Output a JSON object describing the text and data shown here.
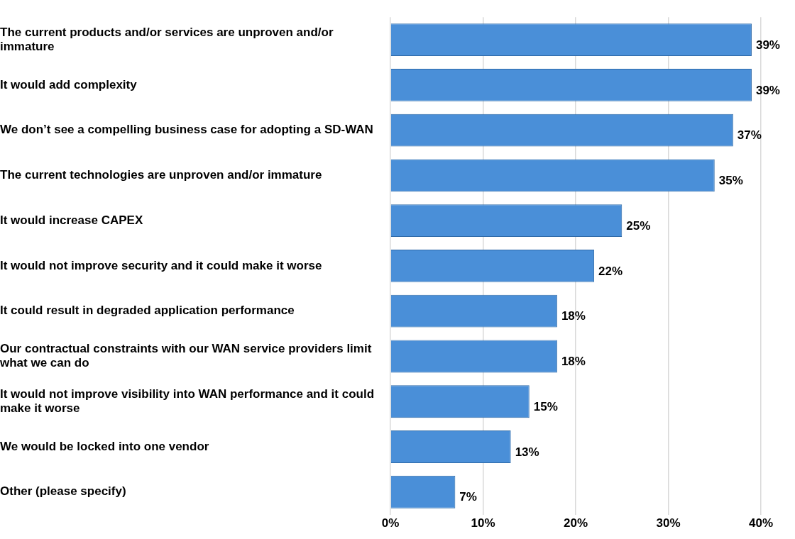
{
  "chart_data": {
    "type": "bar",
    "orientation": "horizontal",
    "categories": [
      "The current products and/or services are unproven and/or immature",
      "It would add complexity",
      "We don’t see a compelling business case for adopting a SD-WAN",
      "The current technologies are unproven and/or immature",
      "It would increase CAPEX",
      "It would not improve security and it could make it worse",
      "It could result in degraded application performance",
      "Our contractual constraints with our WAN service providers limit what we can do",
      "It would not improve visibility into WAN performance and it could make it worse",
      "We would be locked into one vendor",
      "Other (please specify)"
    ],
    "values": [
      39,
      39,
      37,
      35,
      25,
      22,
      18,
      18,
      15,
      13,
      7
    ],
    "value_labels": [
      "39%",
      "39%",
      "37%",
      "35%",
      "25%",
      "22%",
      "18%",
      "18%",
      "15%",
      "13%",
      "7%"
    ],
    "color": "#4a8fd8",
    "xlim": [
      0,
      40
    ],
    "xticks": [
      {
        "value": 0,
        "label": "0%"
      },
      {
        "value": 10,
        "label": "10%"
      },
      {
        "value": 20,
        "label": "20%"
      },
      {
        "value": 30,
        "label": "30%"
      },
      {
        "value": 40,
        "label": "40%"
      }
    ],
    "grid": "x",
    "legend": false
  }
}
